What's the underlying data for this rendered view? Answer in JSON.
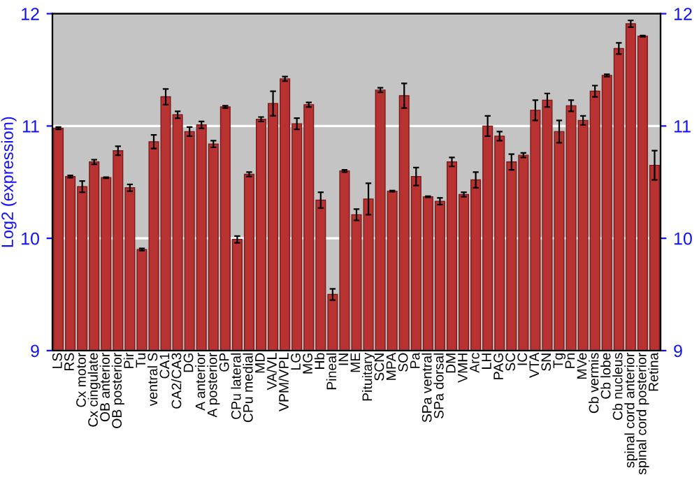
{
  "chart_data": {
    "type": "bar",
    "ylabel": "Log2 (expression)",
    "categories": [
      "LS",
      "RS",
      "Cx motor",
      "Cx cingulate",
      "OB anterior",
      "OB posterior",
      "Pir",
      "Tu",
      "ventral S",
      "CA1",
      "CA2/CA3",
      "DG",
      "A anterior",
      "A posterior",
      "GP",
      "CPu lateral",
      "CPu medial",
      "MD",
      "VA/VL",
      "VPM/VPL",
      "LG",
      "MG",
      "Hb",
      "Pineal",
      "IN",
      "ME",
      "Pituitary",
      "SCN",
      "MPA",
      "SO",
      "Pa",
      "SPa ventral",
      "SPa dorsal",
      "DM",
      "VMH",
      "Arc",
      "LH",
      "PAG",
      "SC",
      "IC",
      "VTA",
      "SN",
      "Tg",
      "Pn",
      "MVe",
      "Cb vermis",
      "Cb lobe",
      "Cb nucleus",
      "spinal cord anterior",
      "spinal cord posterior",
      "Retina"
    ],
    "values": [
      10.98,
      10.55,
      10.46,
      10.68,
      10.54,
      10.78,
      10.45,
      9.9,
      10.86,
      11.26,
      11.1,
      10.95,
      11.01,
      10.84,
      11.17,
      9.99,
      10.57,
      11.06,
      11.2,
      11.42,
      11.02,
      11.19,
      10.34,
      9.5,
      10.6,
      10.21,
      10.35,
      11.32,
      10.42,
      11.27,
      10.55,
      10.37,
      10.33,
      10.68,
      10.39,
      10.52,
      11.0,
      10.91,
      10.68,
      10.74,
      11.14,
      11.23,
      10.95,
      11.18,
      11.05,
      11.31,
      11.45,
      11.69,
      11.91,
      11.8,
      10.65
    ],
    "errors": [
      0.01,
      0.01,
      0.05,
      0.02,
      0.005,
      0.04,
      0.03,
      0.01,
      0.06,
      0.07,
      0.03,
      0.04,
      0.03,
      0.03,
      0.01,
      0.03,
      0.02,
      0.02,
      0.11,
      0.02,
      0.05,
      0.02,
      0.07,
      0.05,
      0.01,
      0.05,
      0.14,
      0.02,
      0.005,
      0.11,
      0.08,
      0.005,
      0.03,
      0.04,
      0.02,
      0.07,
      0.09,
      0.04,
      0.07,
      0.02,
      0.09,
      0.06,
      0.1,
      0.05,
      0.04,
      0.05,
      0.01,
      0.05,
      0.03,
      0.005,
      0.13
    ],
    "color": "#b83232",
    "ylim": [
      9,
      12
    ],
    "yticks": [
      9,
      10,
      11,
      12
    ],
    "y2lim": [
      9,
      12
    ],
    "y2ticks": [
      9,
      10,
      11,
      12
    ],
    "grid": "y"
  }
}
